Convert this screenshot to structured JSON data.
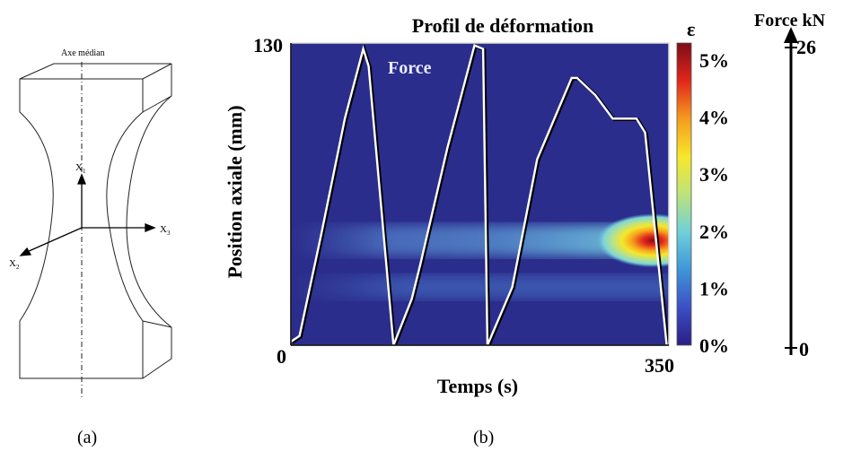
{
  "panel_a": {
    "label": "(a)",
    "axis_caption": "Axe médian",
    "axes": {
      "x1": "X",
      "x1_sub": "1",
      "x2": "X",
      "x2_sub": "2",
      "x3": "X",
      "x3_sub": "3"
    }
  },
  "panel_b": {
    "label": "(b)"
  },
  "chart_data": {
    "type": "heatmap",
    "title": "Profil de déformation",
    "xlabel": "Temps (s)",
    "ylabel": "Position axiale (mm)",
    "xlim": [
      0,
      350
    ],
    "ylim": [
      0,
      130
    ],
    "x_ticks": [
      "0",
      "350"
    ],
    "y_ticks": [
      "0",
      "130"
    ],
    "colorbar": {
      "symbol": "ε",
      "range": [
        0,
        5.3
      ],
      "ticks": [
        "0%",
        "1%",
        "2%",
        "3%",
        "4%",
        "5%"
      ],
      "tick_values": [
        0,
        1,
        2,
        3,
        4,
        5
      ],
      "colors": [
        "#2b1e86",
        "#3b4fc4",
        "#3f96d8",
        "#6fd0d8",
        "#bde37a",
        "#f7e72a",
        "#f59b1e",
        "#e2261c",
        "#7d0c18"
      ]
    },
    "strain_band": {
      "position_mm": 45,
      "peak_value": 5.3,
      "peak_time_s": 335,
      "secondary_band_position_mm": 25
    },
    "overlay": {
      "label": "Force",
      "axis_title": "Force kN",
      "axis_range": [
        0,
        26
      ],
      "axis_ticks": [
        "0",
        "26"
      ],
      "series": {
        "name": "Force",
        "x": [
          0,
          8,
          28,
          50,
          67,
          72,
          95,
          112,
          120,
          145,
          170,
          178,
          182,
          205,
          228,
          260,
          265,
          282,
          298,
          320,
          328,
          348
        ],
        "y": [
          0.3,
          0.8,
          9.5,
          19.5,
          25.5,
          24,
          0,
          4,
          7,
          17,
          25.8,
          25.5,
          0,
          5,
          16,
          23,
          23,
          21.5,
          19.5,
          19.5,
          18.3,
          0
        ]
      }
    }
  }
}
